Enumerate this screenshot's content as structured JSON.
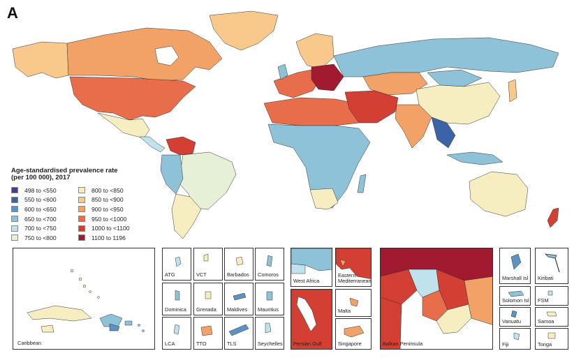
{
  "panel_letter": "A",
  "legend": {
    "title_line1": "Age-standardised prevalence rate",
    "title_line2": "(per 100 000), 2017",
    "left": [
      {
        "label": "498  to  <550",
        "color": "#3f3f9a"
      },
      {
        "label": "550  to  <600",
        "color": "#3b64a8"
      },
      {
        "label": "600  to  <650",
        "color": "#5a93c4"
      },
      {
        "label": "650  to  <700",
        "color": "#8ec2d8"
      },
      {
        "label": "700  to  <750",
        "color": "#bfe2ec"
      },
      {
        "label": "750  to  <800",
        "color": "#e6f0d6"
      }
    ],
    "right": [
      {
        "label": "800  to  <850",
        "color": "#f6eec0"
      },
      {
        "label": "850  to  <900",
        "color": "#f8c98b"
      },
      {
        "label": "900  to  <950",
        "color": "#f2a167"
      },
      {
        "label": "950  to  <1000",
        "color": "#e86e4b"
      },
      {
        "label": "1000  to  <1100",
        "color": "#d43f33"
      },
      {
        "label": "1100  to  1196",
        "color": "#a11a2f"
      }
    ]
  },
  "insets": {
    "caribbean": "Caribbean",
    "atg": "ATG",
    "vct": "VCT",
    "barbados": "Barbados",
    "comoros": "Comoros",
    "dominica": "Dominica",
    "grenada": "Grenada",
    "maldives": "Maldives",
    "mauritius": "Mauritius",
    "lca": "LCA",
    "tto": "TTO",
    "tls": "TLS",
    "seychelles": "Seychelles",
    "west_africa": "West Africa",
    "eastern_med_1": "Eastern",
    "eastern_med_2": "Mediterranean",
    "malta": "Malta",
    "persian_gulf": "Persian Gulf",
    "singapore": "Singapore",
    "balkan": "Balkan Peninsula",
    "marshall": "Marshall Isl",
    "kiribati": "Kiribati",
    "solomon": "Solomon Isl",
    "fsm": "FSM",
    "vanuatu": "Vanuatu",
    "samoa": "Samoa",
    "fiji": "Fiji",
    "tonga": "Tonga"
  }
}
